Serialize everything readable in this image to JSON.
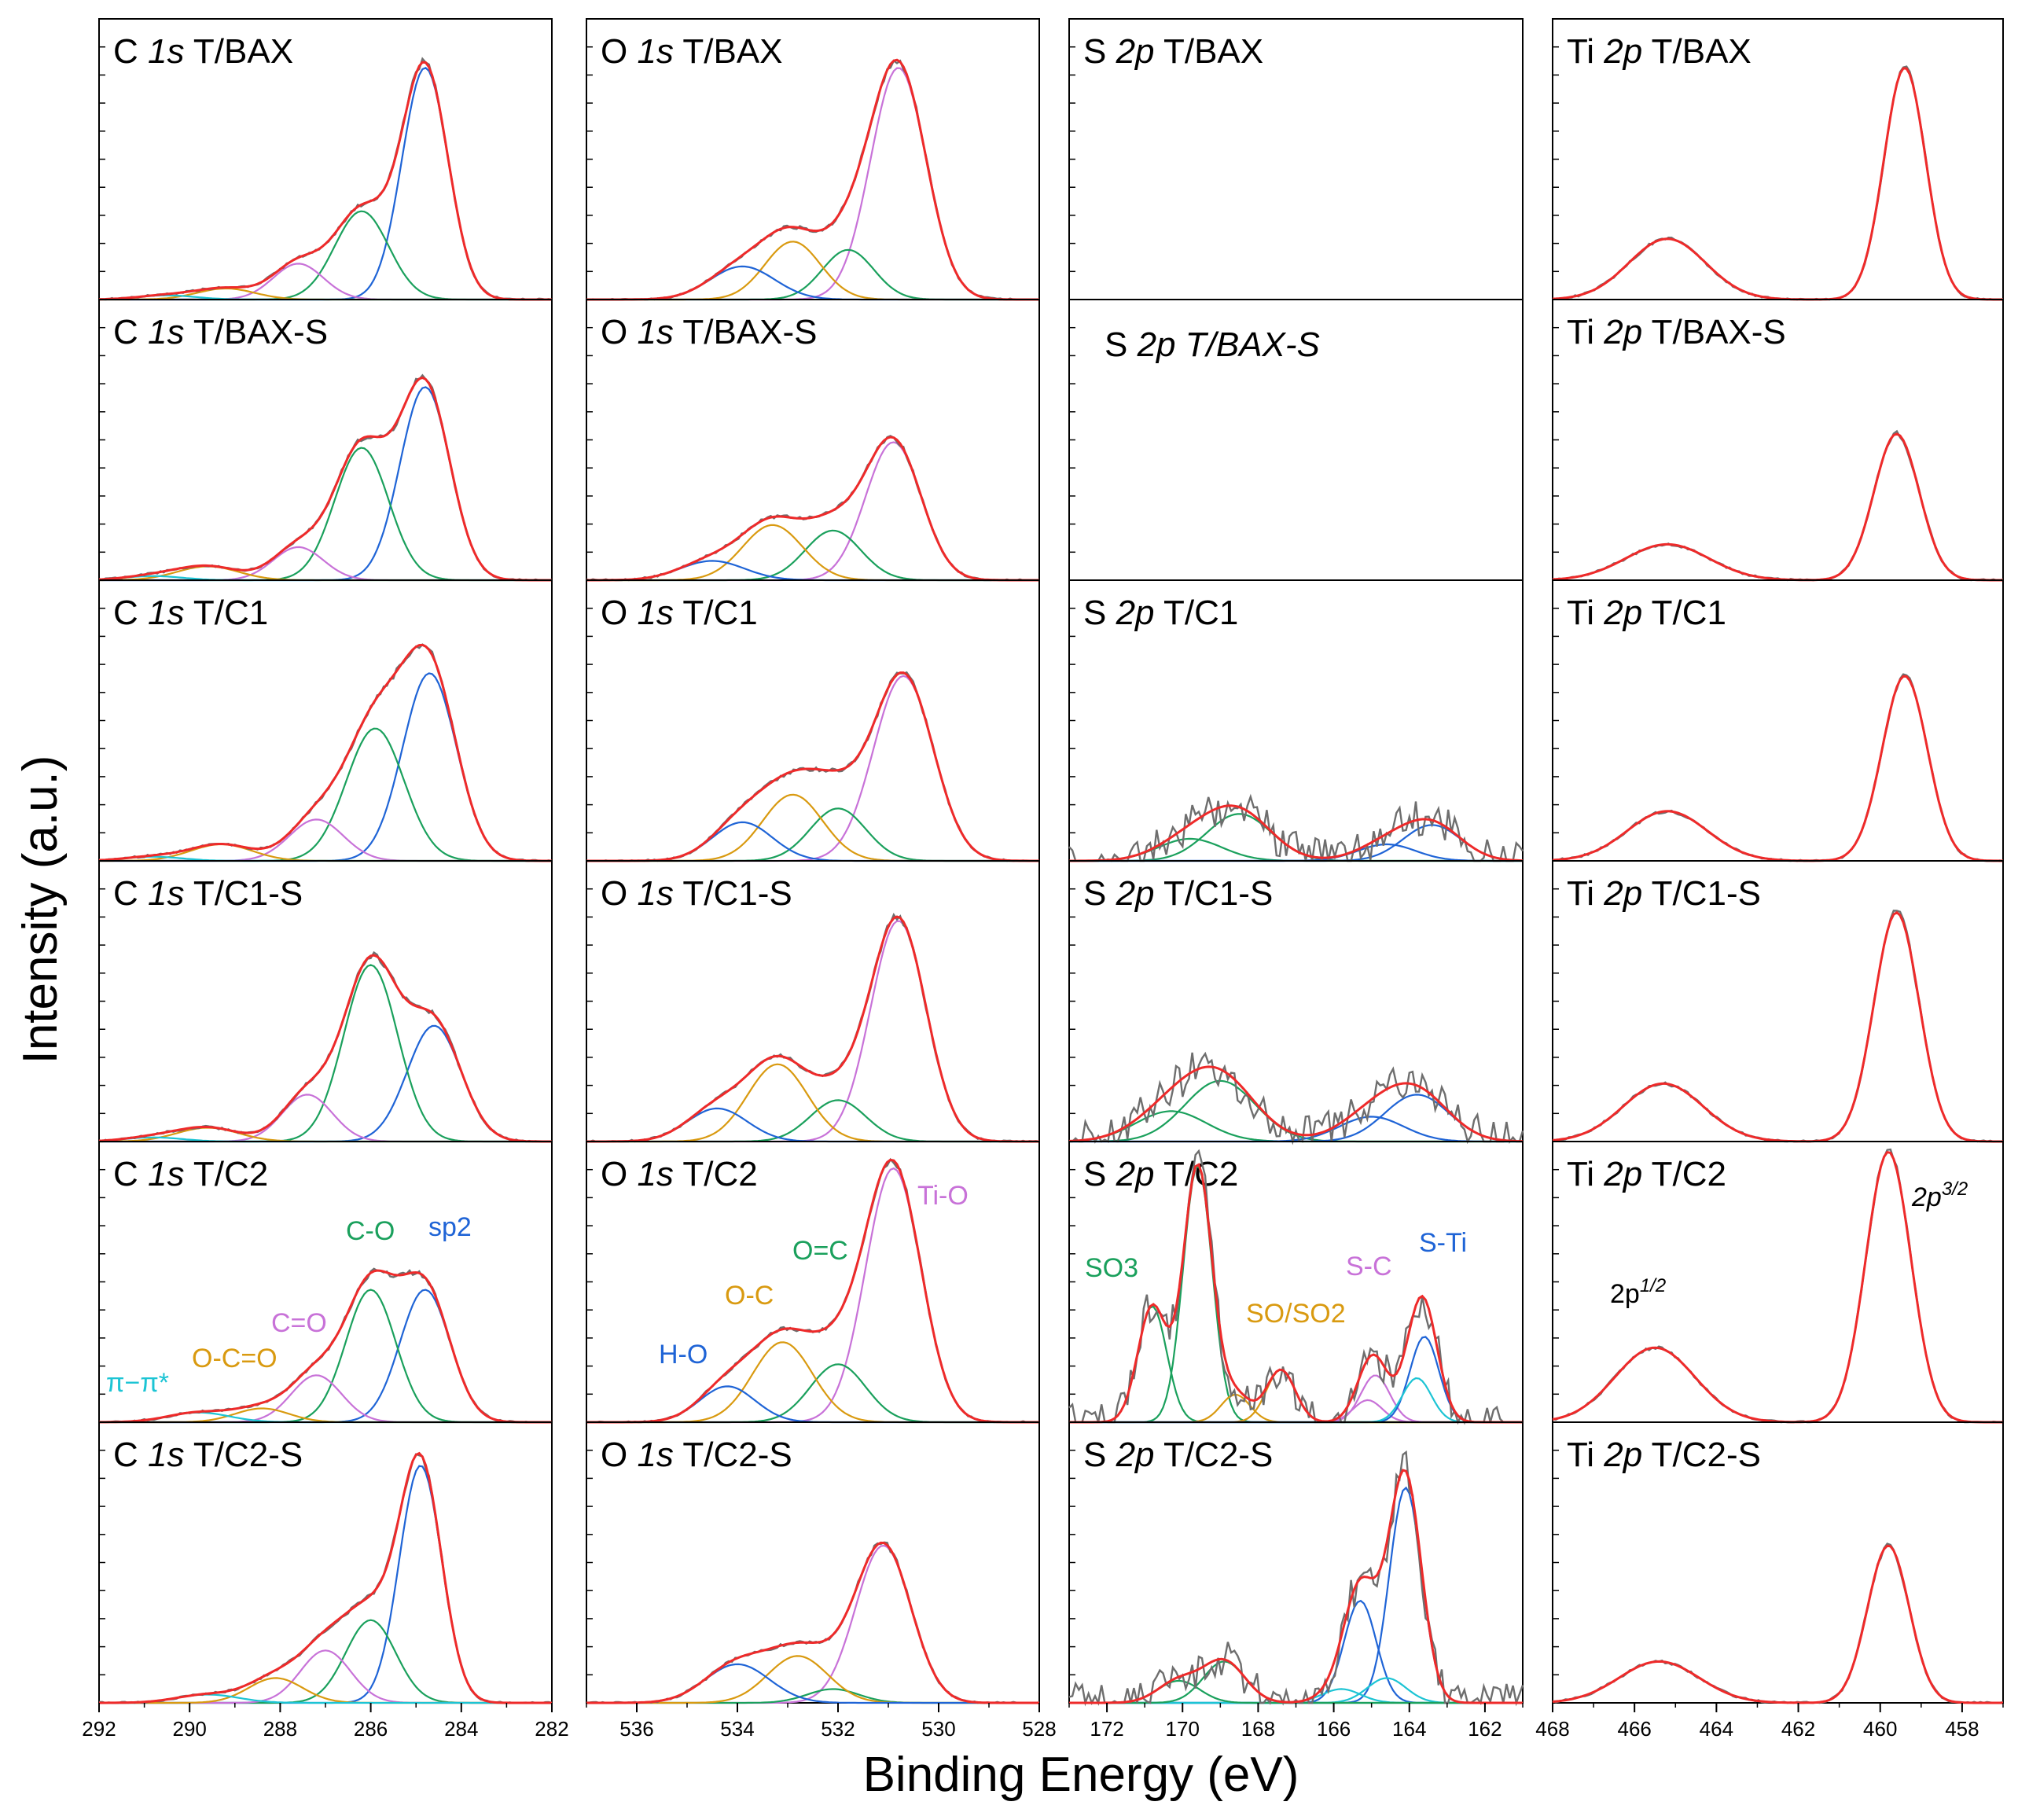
{
  "figure": {
    "xlabel": "Binding Energy (eV)",
    "ylabel": "Intensity (a.u.)"
  },
  "colors": {
    "raw": "#6e6e6e",
    "envelope": "#ee2a2a",
    "sp2": "#1f64d6",
    "C-O": "#1aa05c",
    "C=O": "#c872d8",
    "O-C=O": "#d99a10",
    "pi": "#1cc4d4",
    "Ti-O": "#c872d8",
    "O=C": "#1aa05c",
    "O-C": "#d99a10",
    "H-O": "#1f64d6",
    "SO3": "#1aa05c",
    "SO/SO2": "#d99a10",
    "S-C": "#c872d8",
    "S-Ti": "#1f64d6",
    "S-Ti2": "#1cc4d4"
  },
  "samples": [
    "T/BAX",
    "T/BAX-S",
    "T/C1",
    "T/C1-S",
    "T/C2",
    "T/C2-S"
  ],
  "chart_data": [
    {
      "type": "line",
      "region": "C 1s",
      "xlim": [
        292,
        282
      ],
      "xticks": [
        "292",
        "290",
        "288",
        "286",
        "284",
        "282"
      ],
      "xtick_values": [
        292,
        290,
        288,
        286,
        284,
        282
      ],
      "annotations": {
        "sp2": "sp2",
        "C-O": "C-O",
        "C=O": "C=O",
        "O-C=O": "O-C=O",
        "pi": "π−π*"
      },
      "panels": [
        {
          "title_a": "C ",
          "title_b": "1s",
          "title_c": " T/BAX",
          "peaks": [
            {
              "name": "sp2",
              "center": 284.8,
              "height": 0.84,
              "fwhm": 1.2
            },
            {
              "name": "C-O",
              "center": 286.2,
              "height": 0.32,
              "fwhm": 1.4
            },
            {
              "name": "C=O",
              "center": 287.6,
              "height": 0.13,
              "fwhm": 1.3
            },
            {
              "name": "O-C=O",
              "center": 289.2,
              "height": 0.04,
              "fwhm": 1.5
            },
            {
              "name": "pi",
              "center": 290.5,
              "height": 0.015,
              "fwhm": 1.5
            }
          ]
        },
        {
          "title_a": "C ",
          "title_b": "1s",
          "title_c": " T/BAX-S",
          "peaks": [
            {
              "name": "sp2",
              "center": 284.8,
              "height": 0.7,
              "fwhm": 1.3
            },
            {
              "name": "C-O",
              "center": 286.2,
              "height": 0.48,
              "fwhm": 1.4
            },
            {
              "name": "C=O",
              "center": 287.6,
              "height": 0.12,
              "fwhm": 1.3
            },
            {
              "name": "O-C=O",
              "center": 289.6,
              "height": 0.05,
              "fwhm": 1.6
            },
            {
              "name": "pi",
              "center": 290.8,
              "height": 0.015,
              "fwhm": 1.5
            }
          ]
        },
        {
          "title_a": "C ",
          "title_b": "1s",
          "title_c": " T/C1",
          "peaks": [
            {
              "name": "sp2",
              "center": 284.7,
              "height": 0.68,
              "fwhm": 1.4
            },
            {
              "name": "C-O",
              "center": 285.9,
              "height": 0.48,
              "fwhm": 1.5
            },
            {
              "name": "C=O",
              "center": 287.2,
              "height": 0.15,
              "fwhm": 1.4
            },
            {
              "name": "O-C=O",
              "center": 289.3,
              "height": 0.06,
              "fwhm": 1.6
            },
            {
              "name": "pi",
              "center": 290.8,
              "height": 0.015,
              "fwhm": 1.5
            }
          ]
        },
        {
          "title_a": "C ",
          "title_b": "1s",
          "title_c": " T/C1-S",
          "peaks": [
            {
              "name": "sp2",
              "center": 284.6,
              "height": 0.42,
              "fwhm": 1.4
            },
            {
              "name": "C-O",
              "center": 286.0,
              "height": 0.64,
              "fwhm": 1.4
            },
            {
              "name": "C=O",
              "center": 287.4,
              "height": 0.17,
              "fwhm": 1.3
            },
            {
              "name": "O-C=O",
              "center": 289.6,
              "height": 0.05,
              "fwhm": 1.6
            },
            {
              "name": "pi",
              "center": 290.8,
              "height": 0.015,
              "fwhm": 1.5
            }
          ]
        },
        {
          "title_a": "C ",
          "title_b": "1s",
          "title_c": " T/C2",
          "peaks": [
            {
              "name": "sp2",
              "center": 284.8,
              "height": 0.48,
              "fwhm": 1.3
            },
            {
              "name": "C-O",
              "center": 286.0,
              "height": 0.48,
              "fwhm": 1.3
            },
            {
              "name": "C=O",
              "center": 287.2,
              "height": 0.17,
              "fwhm": 1.3
            },
            {
              "name": "O-C=O",
              "center": 288.4,
              "height": 0.05,
              "fwhm": 1.4
            },
            {
              "name": "pi",
              "center": 289.8,
              "height": 0.035,
              "fwhm": 1.6
            }
          ]
        },
        {
          "title_a": "C ",
          "title_b": "1s",
          "title_c": " T/C2-S",
          "peaks": [
            {
              "name": "sp2",
              "center": 284.9,
              "height": 0.86,
              "fwhm": 1.1
            },
            {
              "name": "C-O",
              "center": 286.0,
              "height": 0.3,
              "fwhm": 1.3
            },
            {
              "name": "C=O",
              "center": 287.0,
              "height": 0.19,
              "fwhm": 1.3
            },
            {
              "name": "O-C=O",
              "center": 288.1,
              "height": 0.09,
              "fwhm": 1.4
            },
            {
              "name": "pi",
              "center": 289.6,
              "height": 0.03,
              "fwhm": 1.6
            }
          ]
        }
      ]
    },
    {
      "type": "line",
      "region": "O 1s",
      "xlim": [
        537,
        528
      ],
      "xticks": [
        "536",
        "534",
        "532",
        "530",
        "528"
      ],
      "xtick_values": [
        536,
        534,
        532,
        530,
        528
      ],
      "annotations": {
        "Ti-O": "Ti-O",
        "O=C": "O=C",
        "O-C": "O-C",
        "H-O": "H-O"
      },
      "panels": [
        {
          "title_a": "O ",
          "title_b": "1s",
          "title_c": " T/BAX",
          "peaks": [
            {
              "name": "Ti-O",
              "center": 530.8,
              "height": 0.84,
              "fwhm": 1.3
            },
            {
              "name": "O=C",
              "center": 531.8,
              "height": 0.18,
              "fwhm": 1.2
            },
            {
              "name": "O-C",
              "center": 532.9,
              "height": 0.21,
              "fwhm": 1.3
            },
            {
              "name": "H-O",
              "center": 533.9,
              "height": 0.12,
              "fwhm": 1.5
            }
          ]
        },
        {
          "title_a": "O ",
          "title_b": "1s",
          "title_c": " T/BAX-S",
          "peaks": [
            {
              "name": "Ti-O",
              "center": 530.9,
              "height": 0.5,
              "fwhm": 1.3
            },
            {
              "name": "O=C",
              "center": 532.1,
              "height": 0.18,
              "fwhm": 1.3
            },
            {
              "name": "O-C",
              "center": 533.3,
              "height": 0.2,
              "fwhm": 1.4
            },
            {
              "name": "H-O",
              "center": 534.5,
              "height": 0.07,
              "fwhm": 1.5
            }
          ]
        },
        {
          "title_a": "O ",
          "title_b": "1s",
          "title_c": " T/C1",
          "peaks": [
            {
              "name": "Ti-O",
              "center": 530.7,
              "height": 0.67,
              "fwhm": 1.4
            },
            {
              "name": "O=C",
              "center": 532.0,
              "height": 0.19,
              "fwhm": 1.3
            },
            {
              "name": "O-C",
              "center": 532.9,
              "height": 0.24,
              "fwhm": 1.4
            },
            {
              "name": "H-O",
              "center": 533.9,
              "height": 0.14,
              "fwhm": 1.4
            }
          ]
        },
        {
          "title_a": "O ",
          "title_b": "1s",
          "title_c": " T/C1-S",
          "peaks": [
            {
              "name": "Ti-O",
              "center": 530.8,
              "height": 0.8,
              "fwhm": 1.3
            },
            {
              "name": "O=C",
              "center": 532.0,
              "height": 0.15,
              "fwhm": 1.3
            },
            {
              "name": "O-C",
              "center": 533.2,
              "height": 0.28,
              "fwhm": 1.4
            },
            {
              "name": "H-O",
              "center": 534.4,
              "height": 0.12,
              "fwhm": 1.4
            }
          ]
        },
        {
          "title_a": "O ",
          "title_b": "1s",
          "title_c": " T/C2",
          "peaks": [
            {
              "name": "Ti-O",
              "center": 530.9,
              "height": 0.92,
              "fwhm": 1.3
            },
            {
              "name": "O=C",
              "center": 532.0,
              "height": 0.21,
              "fwhm": 1.3
            },
            {
              "name": "O-C",
              "center": 533.1,
              "height": 0.29,
              "fwhm": 1.4
            },
            {
              "name": "H-O",
              "center": 534.2,
              "height": 0.13,
              "fwhm": 1.3
            }
          ]
        },
        {
          "title_a": "O ",
          "title_b": "1s",
          "title_c": " T/C2-S",
          "peaks": [
            {
              "name": "Ti-O",
              "center": 531.1,
              "height": 0.57,
              "fwhm": 1.3
            },
            {
              "name": "O=C",
              "center": 532.1,
              "height": 0.05,
              "fwhm": 1.2
            },
            {
              "name": "O-C",
              "center": 532.8,
              "height": 0.17,
              "fwhm": 1.4
            },
            {
              "name": "H-O",
              "center": 534.0,
              "height": 0.14,
              "fwhm": 1.5
            }
          ]
        }
      ]
    },
    {
      "type": "line",
      "region": "S 2p",
      "xlim": [
        173,
        161
      ],
      "xticks": [
        "172",
        "170",
        "168",
        "166",
        "164",
        "162"
      ],
      "xtick_values": [
        172,
        170,
        168,
        166,
        164,
        162
      ],
      "annotations": {
        "SO3": "SO3",
        "SO/SO2": "SO/SO2",
        "S-C": "S-C",
        "S-Ti": "S-Ti"
      },
      "panels": [
        {
          "title_a": "S ",
          "title_b": "2p",
          "title_c": " T/BAX",
          "peaks": []
        },
        {
          "title_a": "S ",
          "title_b": "2p",
          "title_c": " T/BAX-S",
          "italic_sample": true,
          "peaks": []
        },
        {
          "title_a": "S ",
          "title_b": "2p",
          "title_c": " T/C1",
          "peaks": [
            {
              "name": "SO3",
              "center": 168.5,
              "height": 0.17,
              "fwhm": 2.0
            },
            {
              "name": "SO3",
              "center": 169.8,
              "height": 0.08,
              "fwhm": 2.0
            },
            {
              "name": "S-Ti",
              "center": 163.4,
              "height": 0.13,
              "fwhm": 1.8
            },
            {
              "name": "S-Ti",
              "center": 164.6,
              "height": 0.06,
              "fwhm": 1.8
            }
          ]
        },
        {
          "title_a": "S ",
          "title_b": "2p",
          "title_c": " T/C1-S",
          "peaks": [
            {
              "name": "SO3",
              "center": 169.0,
              "height": 0.22,
              "fwhm": 2.2
            },
            {
              "name": "SO3",
              "center": 170.3,
              "height": 0.11,
              "fwhm": 2.2
            },
            {
              "name": "S-Ti",
              "center": 163.8,
              "height": 0.17,
              "fwhm": 2.0
            },
            {
              "name": "S-Ti",
              "center": 165.0,
              "height": 0.09,
              "fwhm": 2.0
            }
          ]
        },
        {
          "title_a": "S ",
          "title_b": "2p",
          "title_c": " T/C2",
          "peaks": [
            {
              "name": "SO3",
              "center": 169.6,
              "height": 0.93,
              "fwhm": 0.9
            },
            {
              "name": "SO3",
              "center": 170.8,
              "height": 0.42,
              "fwhm": 0.9
            },
            {
              "name": "SO/SO2",
              "center": 167.4,
              "height": 0.19,
              "fwhm": 0.9
            },
            {
              "name": "SO/SO2",
              "center": 168.6,
              "height": 0.1,
              "fwhm": 0.9
            },
            {
              "name": "S-C",
              "center": 164.9,
              "height": 0.17,
              "fwhm": 0.9
            },
            {
              "name": "S-C",
              "center": 165.1,
              "height": 0.08,
              "fwhm": 0.9
            },
            {
              "name": "S-Ti",
              "center": 163.6,
              "height": 0.31,
              "fwhm": 0.9
            },
            {
              "name": "S-Ti2",
              "center": 163.8,
              "height": 0.16,
              "fwhm": 0.9
            }
          ]
        },
        {
          "title_a": "S ",
          "title_b": "2p",
          "title_c": " T/C2-S",
          "peaks": [
            {
              "name": "S-Ti",
              "center": 164.1,
              "height": 0.78,
              "fwhm": 1.0
            },
            {
              "name": "S-Ti",
              "center": 165.3,
              "height": 0.37,
              "fwhm": 1.0
            },
            {
              "name": "S-Ti2",
              "center": 164.6,
              "height": 0.09,
              "fwhm": 1.2
            },
            {
              "name": "S-Ti2",
              "center": 165.8,
              "height": 0.05,
              "fwhm": 1.2
            },
            {
              "name": "SO3",
              "center": 168.9,
              "height": 0.15,
              "fwhm": 1.3
            },
            {
              "name": "SO3",
              "center": 170.1,
              "height": 0.08,
              "fwhm": 1.3
            }
          ]
        }
      ]
    },
    {
      "type": "line",
      "region": "Ti 2p",
      "xlim": [
        468,
        457
      ],
      "xticks": [
        "468",
        "466",
        "464",
        "462",
        "460",
        "458"
      ],
      "xtick_values": [
        468,
        466,
        464,
        462,
        460,
        458
      ],
      "annotations": {
        "2p32": "2p",
        "2p32_sup": "3/2",
        "2p12": "2p",
        "2p12_sup": "1/2"
      },
      "panels": [
        {
          "title_a": "Ti ",
          "title_b": "2p",
          "title_c": " T/BAX",
          "peaks": [
            {
              "name": "envelope",
              "center": 459.4,
              "height": 0.84,
              "fwhm": 1.2
            },
            {
              "name": "envelope",
              "center": 465.2,
              "height": 0.22,
              "fwhm": 2.2
            }
          ]
        },
        {
          "title_a": "Ti ",
          "title_b": "2p",
          "title_c": " T/BAX-S",
          "peaks": [
            {
              "name": "envelope",
              "center": 459.6,
              "height": 0.53,
              "fwhm": 1.3
            },
            {
              "name": "envelope",
              "center": 465.2,
              "height": 0.13,
              "fwhm": 2.4
            }
          ]
        },
        {
          "title_a": "Ti ",
          "title_b": "2p",
          "title_c": " T/C1",
          "peaks": [
            {
              "name": "envelope",
              "center": 459.4,
              "height": 0.67,
              "fwhm": 1.3
            },
            {
              "name": "envelope",
              "center": 465.2,
              "height": 0.18,
              "fwhm": 2.3
            }
          ]
        },
        {
          "title_a": "Ti ",
          "title_b": "2p",
          "title_c": " T/C1-S",
          "peaks": [
            {
              "name": "envelope",
              "center": 459.6,
              "height": 0.83,
              "fwhm": 1.3
            },
            {
              "name": "envelope",
              "center": 465.3,
              "height": 0.21,
              "fwhm": 2.3
            }
          ]
        },
        {
          "title_a": "Ti ",
          "title_b": "2p",
          "title_c": " T/C2",
          "peaks": [
            {
              "name": "envelope",
              "center": 459.8,
              "height": 0.98,
              "fwhm": 1.3
            },
            {
              "name": "envelope",
              "center": 465.5,
              "height": 0.27,
              "fwhm": 2.3
            }
          ]
        },
        {
          "title_a": "Ti ",
          "title_b": "2p",
          "title_c": " T/C2-S",
          "peaks": [
            {
              "name": "envelope",
              "center": 459.8,
              "height": 0.57,
              "fwhm": 1.2
            },
            {
              "name": "envelope",
              "center": 465.4,
              "height": 0.15,
              "fwhm": 2.3
            }
          ]
        }
      ]
    }
  ]
}
